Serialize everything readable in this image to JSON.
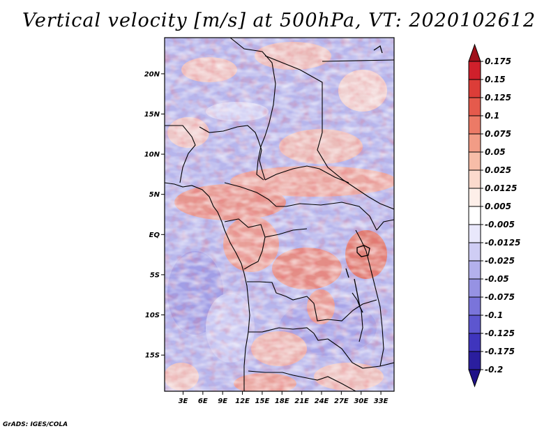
{
  "title": "Vertical velocity [m/s] at 500hPa, VT: 2020102612",
  "credit": "GrADS: IGES/COLA",
  "map": {
    "lat_labels": [
      "20N",
      "15N",
      "10N",
      "5N",
      "EQ",
      "5S",
      "10S",
      "15S"
    ],
    "lon_labels": [
      "3E",
      "6E",
      "9E",
      "12E",
      "15E",
      "18E",
      "21E",
      "24E",
      "27E",
      "30E",
      "33E"
    ],
    "lat_range": [
      -19.5,
      24.5
    ],
    "lon_range": [
      0.2,
      35.0
    ]
  },
  "colorbar": {
    "labels": [
      "0.175",
      "0.15",
      "0.125",
      "0.1",
      "0.075",
      "0.05",
      "0.025",
      "0.0125",
      "0.005",
      "-0.005",
      "-0.0125",
      "-0.025",
      "-0.05",
      "-0.075",
      "-0.1",
      "-0.125",
      "-0.175",
      "-0.2"
    ],
    "colors": [
      "#b40f20",
      "#d0202b",
      "#dc3d38",
      "#e55a4c",
      "#ec7a66",
      "#f29c86",
      "#f7bda8",
      "#fbdacd",
      "#fdefe9",
      "#ffffff",
      "#e9e8fb",
      "#cfcdf4",
      "#b3b0ec",
      "#9692e3",
      "#7a74da",
      "#5d56cf",
      "#3f35bd",
      "#2a1e9e"
    ],
    "top_arrow_color": "#a0101a",
    "bottom_arrow_color": "#1f1288"
  }
}
